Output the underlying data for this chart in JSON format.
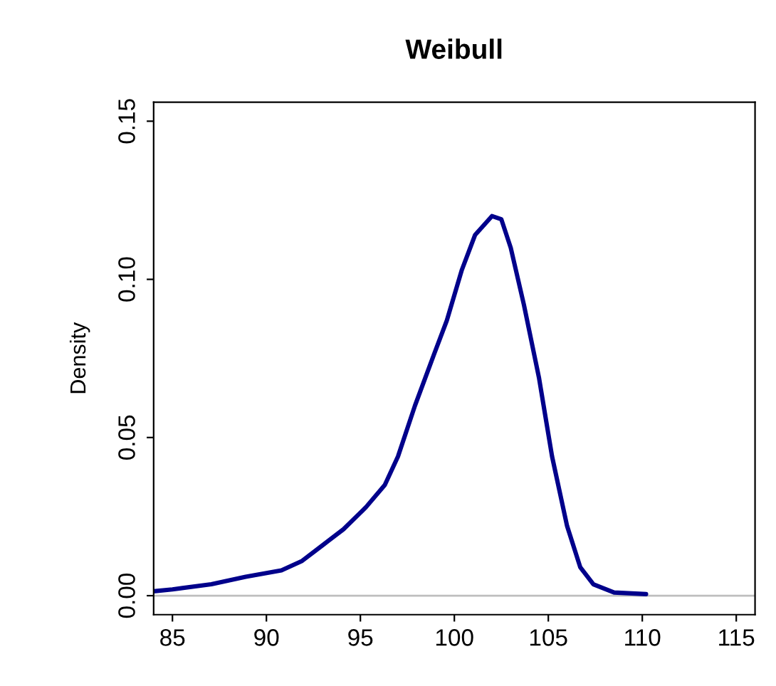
{
  "chart_data": {
    "type": "line",
    "title": "Weibull",
    "ylabel": "Density",
    "x": [
      84,
      85,
      87.07,
      88.9,
      90.8,
      91.9,
      93.0,
      94.1,
      95.3,
      96.3,
      97.0,
      97.9,
      98.9,
      99.6,
      100.4,
      101.1,
      102.0,
      102.5,
      103.0,
      103.7,
      104.5,
      105.2,
      106.0,
      106.7,
      107.4,
      108.5,
      110.2
    ],
    "series": [
      {
        "color": "#00008b",
        "values": [
          0.0014,
          0.002,
          0.0036,
          0.006,
          0.008,
          0.011,
          0.016,
          0.021,
          0.028,
          0.035,
          0.044,
          0.06,
          0.076,
          0.087,
          0.103,
          0.114,
          0.12,
          0.119,
          0.11,
          0.092,
          0.069,
          0.044,
          0.022,
          0.009,
          0.0036,
          0.001,
          0.0005
        ]
      }
    ],
    "xlim": [
      84,
      116
    ],
    "ylim": [
      -0.006,
      0.156
    ],
    "xticks": [
      85,
      90,
      95,
      100,
      105,
      110,
      115
    ],
    "yticks": [
      {
        "value": 0,
        "label": "0.00"
      },
      {
        "value": 0.05,
        "label": "0.05"
      },
      {
        "value": 0.1,
        "label": "0.10"
      },
      {
        "value": 0.15,
        "label": "0.15"
      }
    ],
    "ref_lines": [
      {
        "axis": "y",
        "value": 0,
        "color": "#bebebe"
      }
    ],
    "grid": false,
    "legend": false
  }
}
